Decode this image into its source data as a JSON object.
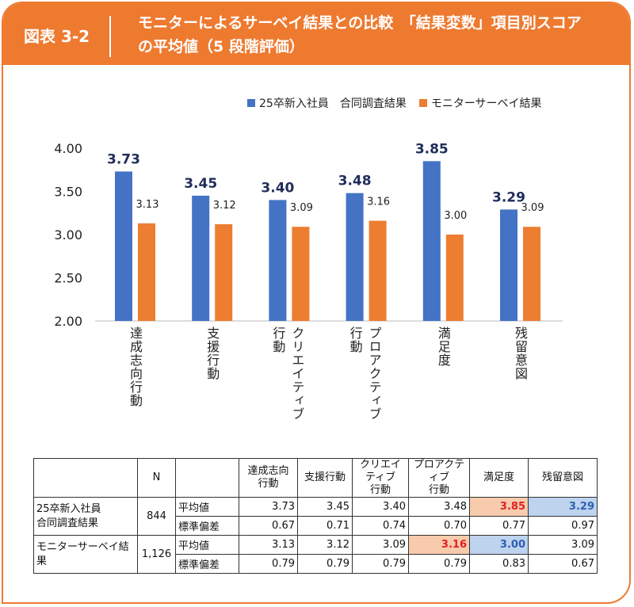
{
  "header": {
    "figure": "図表 3-2",
    "title_line1": "モニターによるサーベイ結果との比較　「結果変数」項目別スコア",
    "title_line2": "の平均値（5 段階評価）"
  },
  "chart_data": {
    "type": "bar",
    "categories": [
      [
        "達成志向行動"
      ],
      [
        "支援行動"
      ],
      [
        "クリエイティブ",
        "行動"
      ],
      [
        "プロアクティブ",
        "行動"
      ],
      [
        "満足度"
      ],
      [
        "残留意図"
      ]
    ],
    "series": [
      {
        "name": "25卒新入社員　合同調査結果",
        "color": "#4472c4",
        "values": [
          3.73,
          3.45,
          3.4,
          3.48,
          3.85,
          3.29
        ],
        "labels": [
          "3.73",
          "3.45",
          "3.40",
          "3.48",
          "3.85",
          "3.29"
        ]
      },
      {
        "name": "モニターサーベイ結果",
        "color": "#ed7d31",
        "values": [
          3.13,
          3.12,
          3.09,
          3.16,
          3.0,
          3.09
        ],
        "labels": [
          "3.13",
          "3.12",
          "3.09",
          "3.16",
          "3.00",
          "3.09"
        ]
      }
    ],
    "ylim": [
      2.0,
      4.0
    ],
    "yticks": [
      "2.00",
      "2.50",
      "3.00",
      "3.50",
      "4.00"
    ],
    "grid": false,
    "legend": "top-right"
  },
  "table": {
    "headers": [
      "",
      "N",
      "",
      [
        "達成志向",
        "行動"
      ],
      [
        "支援行動"
      ],
      [
        "クリエイティブ",
        "行動"
      ],
      [
        "プロアクティブ",
        "行動"
      ],
      [
        "満足度"
      ],
      [
        "残留意図"
      ]
    ],
    "groups": [
      {
        "name": [
          "25卒新入社員",
          "合同調査結果"
        ],
        "n": "844",
        "rows": [
          {
            "label": "平均値",
            "values": [
              "3.73",
              "3.45",
              "3.40",
              "3.48",
              "3.85",
              "3.29"
            ],
            "highlight": [
              "",
              "",
              "",
              "",
              "o",
              "b"
            ]
          },
          {
            "label": "標準偏差",
            "values": [
              "0.67",
              "0.71",
              "0.74",
              "0.70",
              "0.77",
              "0.97"
            ],
            "highlight": [
              "",
              "",
              "",
              "",
              "",
              ""
            ]
          }
        ]
      },
      {
        "name": [
          "モニターサーベイ結果"
        ],
        "n": "1,126",
        "rows": [
          {
            "label": "平均値",
            "values": [
              "3.13",
              "3.12",
              "3.09",
              "3.16",
              "3.00",
              "3.09"
            ],
            "highlight": [
              "",
              "",
              "",
              "o",
              "b",
              ""
            ]
          },
          {
            "label": "標準偏差",
            "values": [
              "0.79",
              "0.79",
              "0.79",
              "0.79",
              "0.83",
              "0.67"
            ],
            "highlight": [
              "",
              "",
              "",
              "",
              "",
              ""
            ]
          }
        ]
      }
    ]
  }
}
